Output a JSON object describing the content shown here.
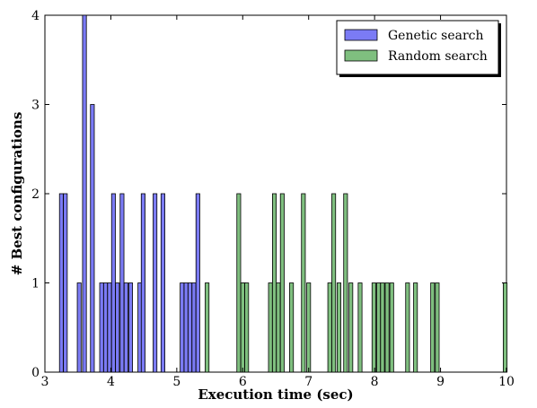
{
  "chart_data": {
    "type": "bar",
    "xlabel": "Execution time (sec)",
    "ylabel": "# Best configurations",
    "xlim": [
      3,
      10
    ],
    "ylim": [
      0,
      4
    ],
    "x_ticks": [
      "3",
      "4",
      "5",
      "6",
      "7",
      "8",
      "9",
      "10"
    ],
    "y_ticks": [
      "0",
      "1",
      "2",
      "3",
      "4"
    ],
    "legend_position": "top-right",
    "series": [
      {
        "name": "Genetic search",
        "color": "#7b7bf5",
        "bins": [
          {
            "x": 3.25,
            "count": 2
          },
          {
            "x": 3.31,
            "count": 2
          },
          {
            "x": 3.52,
            "count": 1
          },
          {
            "x": 3.6,
            "count": 4
          },
          {
            "x": 3.72,
            "count": 3
          },
          {
            "x": 3.86,
            "count": 1
          },
          {
            "x": 3.92,
            "count": 1
          },
          {
            "x": 3.98,
            "count": 1
          },
          {
            "x": 4.04,
            "count": 2
          },
          {
            "x": 4.1,
            "count": 1
          },
          {
            "x": 4.17,
            "count": 2
          },
          {
            "x": 4.23,
            "count": 1
          },
          {
            "x": 4.3,
            "count": 1
          },
          {
            "x": 4.44,
            "count": 1
          },
          {
            "x": 4.49,
            "count": 2
          },
          {
            "x": 4.67,
            "count": 2
          },
          {
            "x": 4.79,
            "count": 2
          },
          {
            "x": 5.08,
            "count": 1
          },
          {
            "x": 5.14,
            "count": 1
          },
          {
            "x": 5.2,
            "count": 1
          },
          {
            "x": 5.26,
            "count": 1
          },
          {
            "x": 5.32,
            "count": 2
          },
          {
            "x": 6.02,
            "count": 1
          }
        ]
      },
      {
        "name": "Random search",
        "color": "#7fbf7f",
        "bins": [
          {
            "x": 5.46,
            "count": 1
          },
          {
            "x": 5.94,
            "count": 2
          },
          {
            "x": 6.0,
            "count": 1
          },
          {
            "x": 6.06,
            "count": 1
          },
          {
            "x": 6.42,
            "count": 1
          },
          {
            "x": 6.48,
            "count": 2
          },
          {
            "x": 6.54,
            "count": 1
          },
          {
            "x": 6.6,
            "count": 2
          },
          {
            "x": 6.74,
            "count": 1
          },
          {
            "x": 6.92,
            "count": 2
          },
          {
            "x": 7.0,
            "count": 1
          },
          {
            "x": 7.32,
            "count": 1
          },
          {
            "x": 7.38,
            "count": 2
          },
          {
            "x": 7.46,
            "count": 1
          },
          {
            "x": 7.56,
            "count": 2
          },
          {
            "x": 7.64,
            "count": 1
          },
          {
            "x": 7.78,
            "count": 1
          },
          {
            "x": 7.99,
            "count": 1
          },
          {
            "x": 8.06,
            "count": 1
          },
          {
            "x": 8.12,
            "count": 1
          },
          {
            "x": 8.19,
            "count": 1
          },
          {
            "x": 8.26,
            "count": 1
          },
          {
            "x": 8.5,
            "count": 1
          },
          {
            "x": 8.62,
            "count": 1
          },
          {
            "x": 8.88,
            "count": 1
          },
          {
            "x": 8.95,
            "count": 1
          },
          {
            "x": 9.98,
            "count": 1
          }
        ]
      }
    ]
  }
}
